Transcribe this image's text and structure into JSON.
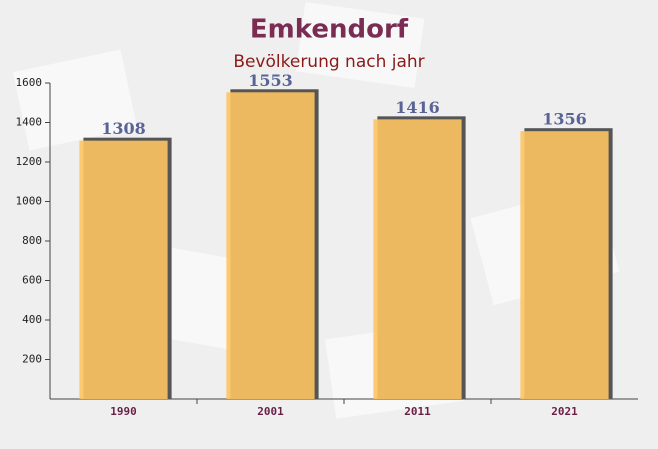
{
  "chart_data": {
    "type": "bar",
    "title": "Emkendorf",
    "subtitle": "Bevölkerung nach jahr",
    "categories": [
      "1990",
      "2001",
      "2011",
      "2021"
    ],
    "values": [
      1308,
      1553,
      1416,
      1356
    ],
    "color": "#fdc462",
    "ylim": [
      0,
      1600
    ],
    "yticks": [
      200,
      400,
      600,
      800,
      1000,
      1200,
      1400,
      1600
    ],
    "grid": false
  }
}
